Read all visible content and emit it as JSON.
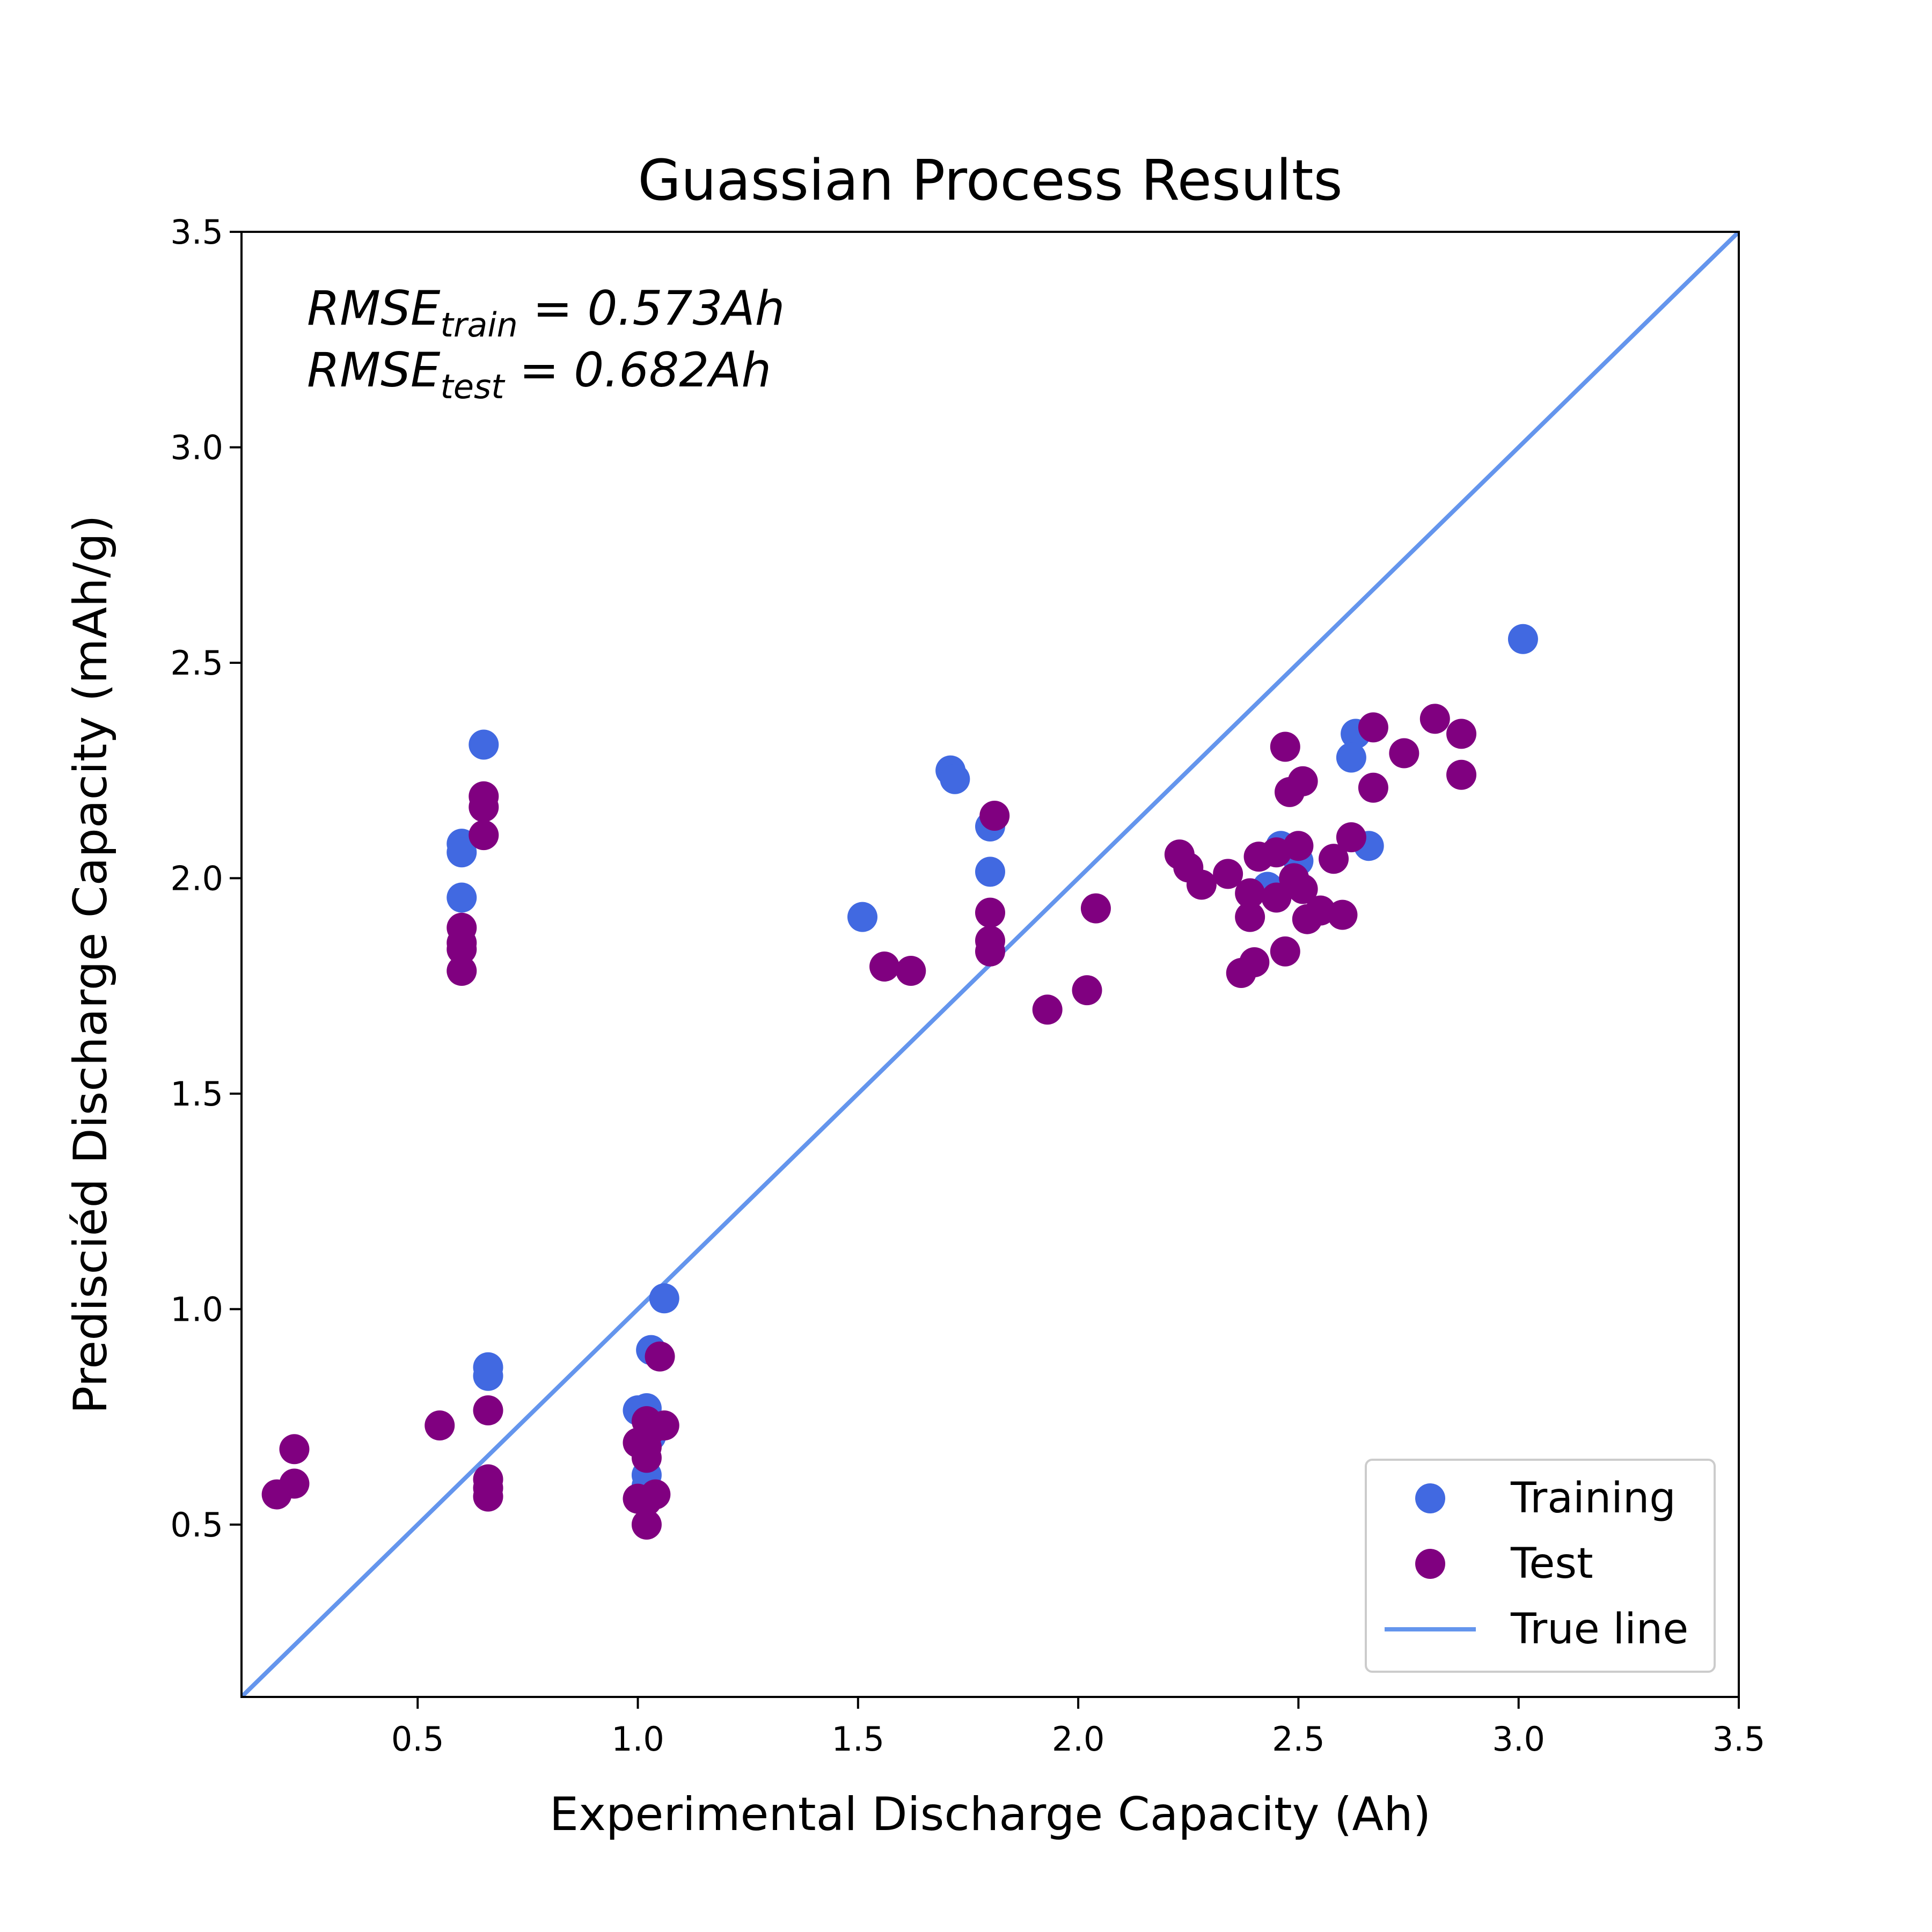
{
  "chart_data": {
    "type": "scatter",
    "title": "Guassian Process Results",
    "xlabel": "Experimental Discharge Capacity (Ah)",
    "ylabel": "Predisciéd Discharge Capacity (mAh/g)",
    "xlim": [
      0.1,
      3.5
    ],
    "ylim": [
      0.1,
      3.5
    ],
    "xticks": [
      "0.5",
      "1.0",
      "1.5",
      "2.0",
      "2.5",
      "3.0",
      "3.5"
    ],
    "yticks": [
      "0.5",
      "1.0",
      "1.5",
      "2.0",
      "2.5",
      "3.0",
      "3.5"
    ],
    "grid": false,
    "legend_position": "bottom-right",
    "annotations": [
      {
        "prefix": "RMSE",
        "sub": "train",
        "suffix": " = 0.573Ah"
      },
      {
        "prefix": "RMSE",
        "sub": "test",
        "suffix": " = 0.682Ah"
      }
    ],
    "series": [
      {
        "name": "Training",
        "color": "#4169e1",
        "kind": "scatter",
        "points": [
          [
            0.65,
            2.31
          ],
          [
            0.6,
            2.08
          ],
          [
            0.6,
            2.06
          ],
          [
            0.6,
            1.955
          ],
          [
            0.66,
            0.865
          ],
          [
            0.66,
            0.845
          ],
          [
            1.06,
            1.025
          ],
          [
            1.03,
            0.905
          ],
          [
            1.0,
            0.765
          ],
          [
            1.02,
            0.77
          ],
          [
            1.02,
            0.615
          ],
          [
            1.02,
            0.59
          ],
          [
            1.03,
            0.705
          ],
          [
            1.51,
            1.91
          ],
          [
            1.71,
            2.25
          ],
          [
            1.72,
            2.23
          ],
          [
            1.8,
            2.12
          ],
          [
            1.8,
            2.015
          ],
          [
            2.63,
            2.335
          ],
          [
            2.62,
            2.28
          ],
          [
            2.66,
            2.075
          ],
          [
            2.46,
            2.075
          ],
          [
            2.43,
            1.98
          ],
          [
            2.5,
            2.04
          ],
          [
            3.01,
            2.555
          ]
        ]
      },
      {
        "name": "Test",
        "color": "#800080",
        "kind": "scatter",
        "points": [
          [
            0.65,
            2.19
          ],
          [
            0.65,
            2.165
          ],
          [
            0.65,
            2.1
          ],
          [
            0.6,
            1.885
          ],
          [
            0.6,
            1.85
          ],
          [
            0.6,
            1.835
          ],
          [
            0.6,
            1.785
          ],
          [
            0.18,
            0.57
          ],
          [
            0.22,
            0.595
          ],
          [
            0.22,
            0.675
          ],
          [
            0.55,
            0.73
          ],
          [
            0.66,
            0.765
          ],
          [
            0.66,
            0.605
          ],
          [
            0.66,
            0.585
          ],
          [
            0.66,
            0.565
          ],
          [
            1.05,
            0.89
          ],
          [
            1.02,
            0.74
          ],
          [
            1.06,
            0.73
          ],
          [
            1.03,
            0.72
          ],
          [
            1.0,
            0.69
          ],
          [
            1.02,
            0.68
          ],
          [
            1.02,
            0.655
          ],
          [
            1.0,
            0.56
          ],
          [
            1.04,
            0.57
          ],
          [
            1.02,
            0.555
          ],
          [
            1.02,
            0.5
          ],
          [
            1.56,
            1.795
          ],
          [
            1.62,
            1.785
          ],
          [
            1.81,
            2.145
          ],
          [
            1.8,
            1.92
          ],
          [
            1.8,
            1.855
          ],
          [
            1.8,
            1.83
          ],
          [
            1.93,
            1.695
          ],
          [
            2.02,
            1.74
          ],
          [
            2.04,
            1.93
          ],
          [
            2.23,
            2.055
          ],
          [
            2.25,
            2.025
          ],
          [
            2.28,
            1.985
          ],
          [
            2.34,
            2.01
          ],
          [
            2.37,
            1.78
          ],
          [
            2.4,
            1.805
          ],
          [
            2.39,
            1.91
          ],
          [
            2.39,
            1.965
          ],
          [
            2.41,
            2.05
          ],
          [
            2.45,
            2.06
          ],
          [
            2.45,
            1.955
          ],
          [
            2.47,
            2.305
          ],
          [
            2.48,
            2.2
          ],
          [
            2.51,
            2.225
          ],
          [
            2.47,
            1.83
          ],
          [
            2.49,
            2.0
          ],
          [
            2.5,
            2.075
          ],
          [
            2.51,
            1.975
          ],
          [
            2.52,
            1.905
          ],
          [
            2.55,
            1.925
          ],
          [
            2.58,
            2.045
          ],
          [
            2.6,
            1.915
          ],
          [
            2.62,
            2.095
          ],
          [
            2.67,
            2.35
          ],
          [
            2.67,
            2.21
          ],
          [
            2.74,
            2.29
          ],
          [
            2.81,
            2.37
          ],
          [
            2.87,
            2.335
          ],
          [
            2.87,
            2.24
          ]
        ]
      },
      {
        "name": "True line",
        "color": "#6495ed",
        "kind": "line",
        "points": [
          [
            0.1,
            0.1
          ],
          [
            3.5,
            3.5
          ]
        ]
      }
    ]
  }
}
